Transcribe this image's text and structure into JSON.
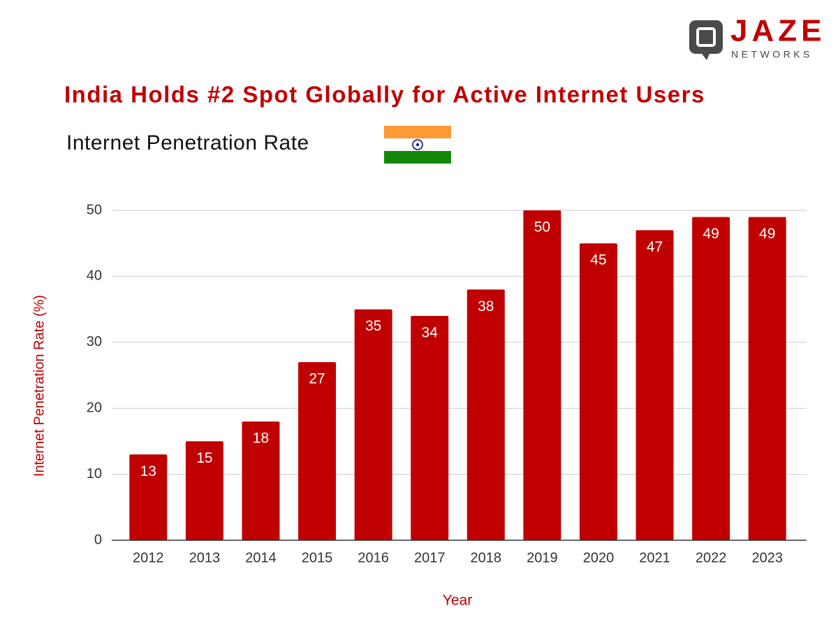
{
  "logo": {
    "name": "JAZE",
    "tagline": "NETWORKS"
  },
  "chart_data": {
    "type": "bar",
    "title": "India Holds #2 Spot Globally for Active Internet Users",
    "subtitle": "Internet Penetration Rate",
    "x_label": "Year",
    "y_label": "Internet Penetration Rate (%)",
    "categories": [
      "2012",
      "2013",
      "2014",
      "2015",
      "2016",
      "2017",
      "2018",
      "2019",
      "2020",
      "2021",
      "2022",
      "2023"
    ],
    "values": [
      13,
      15,
      18,
      27,
      35,
      34,
      38,
      50,
      45,
      47,
      49,
      49
    ],
    "color": "#c00000",
    "ylim": [
      0,
      50
    ],
    "yticks": [
      0,
      10,
      20,
      30,
      40,
      50
    ],
    "grid": true
  }
}
